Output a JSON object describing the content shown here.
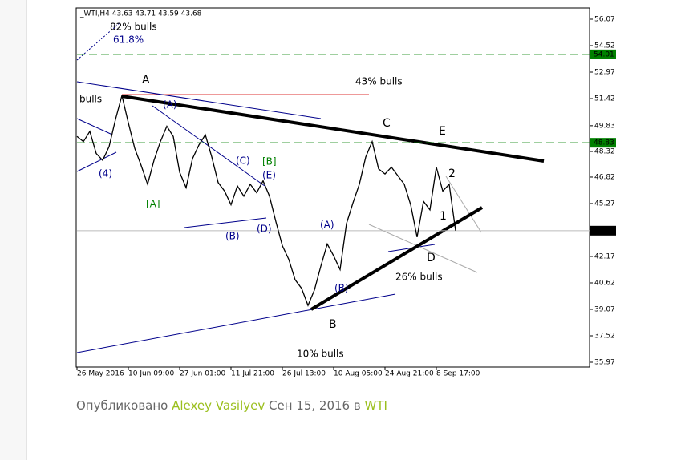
{
  "chart_data": {
    "type": "line",
    "title": "_WTI,H4  43.63 43.71 43.59 43.68",
    "categories": [
      "26 May 2016",
      null,
      null,
      null,
      null,
      null,
      null,
      null,
      "10 Jun 09:00",
      null,
      null,
      null,
      null,
      null,
      null,
      null,
      "27 Jun 01:00",
      null,
      null,
      null,
      null,
      null,
      null,
      null,
      "11 Jul 21:00",
      null,
      null,
      null,
      null,
      null,
      null,
      null,
      "26 Jul 13:00",
      null,
      null,
      null,
      null,
      null,
      null,
      null,
      "10 Aug 05:00",
      null,
      null,
      null,
      null,
      null,
      null,
      null,
      "24 Aug 21:00",
      null,
      null,
      null,
      null,
      null,
      null,
      null,
      "8 Sep 17:00",
      null,
      null,
      null
    ],
    "series": [
      {
        "name": "WTI",
        "color": "#000000",
        "values": [
          49.2,
          48.9,
          49.5,
          48.2,
          47.8,
          48.6,
          50.2,
          51.6,
          50.0,
          48.5,
          47.5,
          46.4,
          47.8,
          48.9,
          49.8,
          49.2,
          47.1,
          46.2,
          47.9,
          48.7,
          49.3,
          48.0,
          46.5,
          46.0,
          45.2,
          46.3,
          45.7,
          46.4,
          45.9,
          46.6,
          45.7,
          44.2,
          42.8,
          42.0,
          40.8,
          40.3,
          39.3,
          40.2,
          41.6,
          42.9,
          42.2,
          41.4,
          44.1,
          45.3,
          46.4,
          48.0,
          48.9,
          47.3,
          47.0,
          47.4,
          46.9,
          46.4,
          45.2,
          43.3,
          45.4,
          44.9,
          47.4,
          46.0,
          46.4,
          43.68
        ]
      }
    ],
    "ylim": [
      35.97,
      56.07
    ],
    "yticks": [
      35.97,
      37.52,
      39.07,
      40.62,
      42.17,
      45.27,
      46.82,
      48.32,
      49.83,
      51.42,
      52.97,
      54.52,
      56.07
    ],
    "levels": [
      {
        "value": 54.01,
        "color": "#008000"
      },
      {
        "value": 48.83,
        "color": "#008000"
      }
    ],
    "last_price": 43.68,
    "annotations": [
      "82% bulls",
      "61.8%",
      "A",
      "43% bulls",
      "bulls",
      "(A)",
      "C",
      "E",
      "(4)",
      "(C)",
      "[B]",
      "(E)",
      "2",
      "[A]",
      "1",
      "(A)",
      "(B)",
      "(D)",
      "D",
      "26% bulls",
      "(B)",
      "B",
      "10% bulls"
    ]
  },
  "footer": {
    "prefix": "Опубликовано",
    "author": "Alexey Vasilyev",
    "date": "Сен 15, 2016 в",
    "tag": "WTI"
  }
}
